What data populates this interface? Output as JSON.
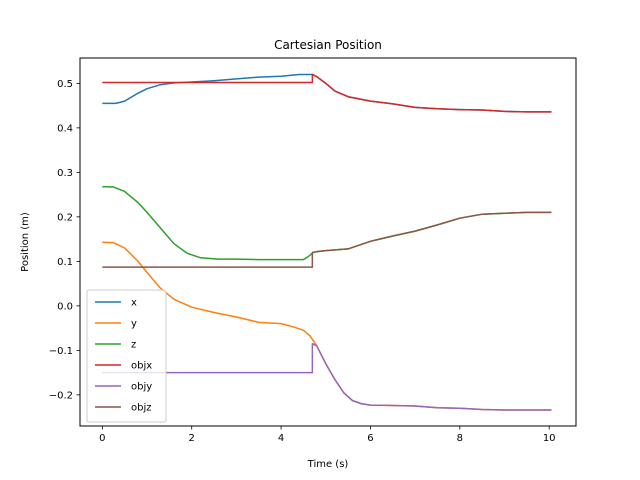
{
  "chart_data": {
    "type": "line",
    "title": "Cartesian Position",
    "xlabel": "Time (s)",
    "ylabel": "Position (m)",
    "xlim": [
      -0.5,
      10.6
    ],
    "ylim": [
      -0.27,
      0.557
    ],
    "x_ticks": [
      0,
      2,
      4,
      6,
      8,
      10
    ],
    "y_ticks": [
      -0.2,
      -0.1,
      0.0,
      0.1,
      0.2,
      0.3,
      0.4,
      0.5
    ],
    "x_tick_labels": [
      "0",
      "2",
      "4",
      "6",
      "8",
      "10"
    ],
    "y_tick_labels": [
      "−0.2",
      "−0.1",
      "0.0",
      "0.1",
      "0.2",
      "0.3",
      "0.4",
      "0.5"
    ],
    "grid": false,
    "legend_position": "lower-left",
    "series": [
      {
        "name": "x",
        "color": "#1f77b4",
        "points": [
          [
            0,
            0.455
          ],
          [
            0.3,
            0.455
          ],
          [
            0.5,
            0.46
          ],
          [
            0.8,
            0.478
          ],
          [
            1.0,
            0.488
          ],
          [
            1.3,
            0.497
          ],
          [
            1.6,
            0.501
          ],
          [
            2.0,
            0.503
          ],
          [
            2.5,
            0.506
          ],
          [
            3.0,
            0.51
          ],
          [
            3.5,
            0.514
          ],
          [
            4.0,
            0.516
          ],
          [
            4.4,
            0.52
          ],
          [
            4.7,
            0.52
          ],
          [
            4.8,
            0.515
          ],
          [
            5.0,
            0.5
          ],
          [
            5.2,
            0.483
          ],
          [
            5.5,
            0.47
          ],
          [
            6.0,
            0.46
          ],
          [
            6.5,
            0.454
          ],
          [
            7.0,
            0.446
          ],
          [
            7.5,
            0.443
          ],
          [
            8.0,
            0.441
          ],
          [
            8.5,
            0.44
          ],
          [
            9.0,
            0.437
          ],
          [
            9.5,
            0.436
          ],
          [
            10.05,
            0.436
          ]
        ]
      },
      {
        "name": "y",
        "color": "#ff7f0e",
        "points": [
          [
            0,
            0.143
          ],
          [
            0.25,
            0.142
          ],
          [
            0.5,
            0.13
          ],
          [
            0.8,
            0.1
          ],
          [
            1.0,
            0.075
          ],
          [
            1.3,
            0.04
          ],
          [
            1.6,
            0.015
          ],
          [
            2.0,
            -0.003
          ],
          [
            2.5,
            -0.015
          ],
          [
            3.0,
            -0.025
          ],
          [
            3.5,
            -0.037
          ],
          [
            4.0,
            -0.04
          ],
          [
            4.3,
            -0.048
          ],
          [
            4.5,
            -0.055
          ],
          [
            4.65,
            -0.068
          ],
          [
            4.8,
            -0.09
          ],
          [
            5.0,
            -0.13
          ],
          [
            5.2,
            -0.165
          ],
          [
            5.4,
            -0.195
          ],
          [
            5.6,
            -0.213
          ],
          [
            5.8,
            -0.22
          ],
          [
            6.0,
            -0.223
          ],
          [
            6.5,
            -0.224
          ],
          [
            7.0,
            -0.225
          ],
          [
            7.5,
            -0.229
          ],
          [
            8.0,
            -0.23
          ],
          [
            8.5,
            -0.233
          ],
          [
            9.0,
            -0.234
          ],
          [
            9.5,
            -0.234
          ],
          [
            10.05,
            -0.234
          ]
        ]
      },
      {
        "name": "z",
        "color": "#2ca02c",
        "points": [
          [
            0,
            0.268
          ],
          [
            0.25,
            0.267
          ],
          [
            0.5,
            0.257
          ],
          [
            0.8,
            0.232
          ],
          [
            1.0,
            0.21
          ],
          [
            1.3,
            0.175
          ],
          [
            1.6,
            0.14
          ],
          [
            1.9,
            0.118
          ],
          [
            2.2,
            0.108
          ],
          [
            2.6,
            0.105
          ],
          [
            3.0,
            0.105
          ],
          [
            3.5,
            0.104
          ],
          [
            4.0,
            0.104
          ],
          [
            4.5,
            0.104
          ],
          [
            4.6,
            0.11
          ],
          [
            4.72,
            0.12
          ],
          [
            4.8,
            0.122
          ],
          [
            5.0,
            0.124
          ],
          [
            5.5,
            0.128
          ],
          [
            6.0,
            0.145
          ],
          [
            6.5,
            0.157
          ],
          [
            7.0,
            0.168
          ],
          [
            7.5,
            0.182
          ],
          [
            8.0,
            0.197
          ],
          [
            8.5,
            0.206
          ],
          [
            9.0,
            0.208
          ],
          [
            9.5,
            0.21
          ],
          [
            10.05,
            0.21
          ]
        ]
      },
      {
        "name": "objx",
        "color": "#d62728",
        "points": [
          [
            0,
            0.502
          ],
          [
            4.7,
            0.502
          ],
          [
            4.7,
            0.52
          ],
          [
            4.8,
            0.515
          ],
          [
            5.0,
            0.5
          ],
          [
            5.2,
            0.483
          ],
          [
            5.5,
            0.47
          ],
          [
            6.0,
            0.46
          ],
          [
            6.5,
            0.454
          ],
          [
            7.0,
            0.446
          ],
          [
            7.5,
            0.443
          ],
          [
            8.0,
            0.441
          ],
          [
            8.5,
            0.44
          ],
          [
            9.0,
            0.437
          ],
          [
            9.5,
            0.436
          ],
          [
            10.05,
            0.436
          ]
        ]
      },
      {
        "name": "objy",
        "color": "#9467bd",
        "points": [
          [
            0,
            -0.15
          ],
          [
            4.7,
            -0.15
          ],
          [
            4.7,
            -0.085
          ],
          [
            4.8,
            -0.09
          ],
          [
            5.0,
            -0.13
          ],
          [
            5.2,
            -0.165
          ],
          [
            5.4,
            -0.195
          ],
          [
            5.6,
            -0.213
          ],
          [
            5.8,
            -0.22
          ],
          [
            6.0,
            -0.223
          ],
          [
            6.5,
            -0.224
          ],
          [
            7.0,
            -0.225
          ],
          [
            7.5,
            -0.229
          ],
          [
            8.0,
            -0.23
          ],
          [
            8.5,
            -0.233
          ],
          [
            9.0,
            -0.234
          ],
          [
            9.5,
            -0.234
          ],
          [
            10.05,
            -0.234
          ]
        ]
      },
      {
        "name": "objz",
        "color": "#8c564b",
        "points": [
          [
            0,
            0.087
          ],
          [
            4.7,
            0.087
          ],
          [
            4.7,
            0.12
          ],
          [
            4.8,
            0.122
          ],
          [
            5.0,
            0.124
          ],
          [
            5.5,
            0.128
          ],
          [
            6.0,
            0.145
          ],
          [
            6.5,
            0.157
          ],
          [
            7.0,
            0.168
          ],
          [
            7.5,
            0.182
          ],
          [
            8.0,
            0.197
          ],
          [
            8.5,
            0.206
          ],
          [
            9.0,
            0.208
          ],
          [
            9.5,
            0.21
          ],
          [
            10.05,
            0.21
          ]
        ]
      }
    ]
  }
}
